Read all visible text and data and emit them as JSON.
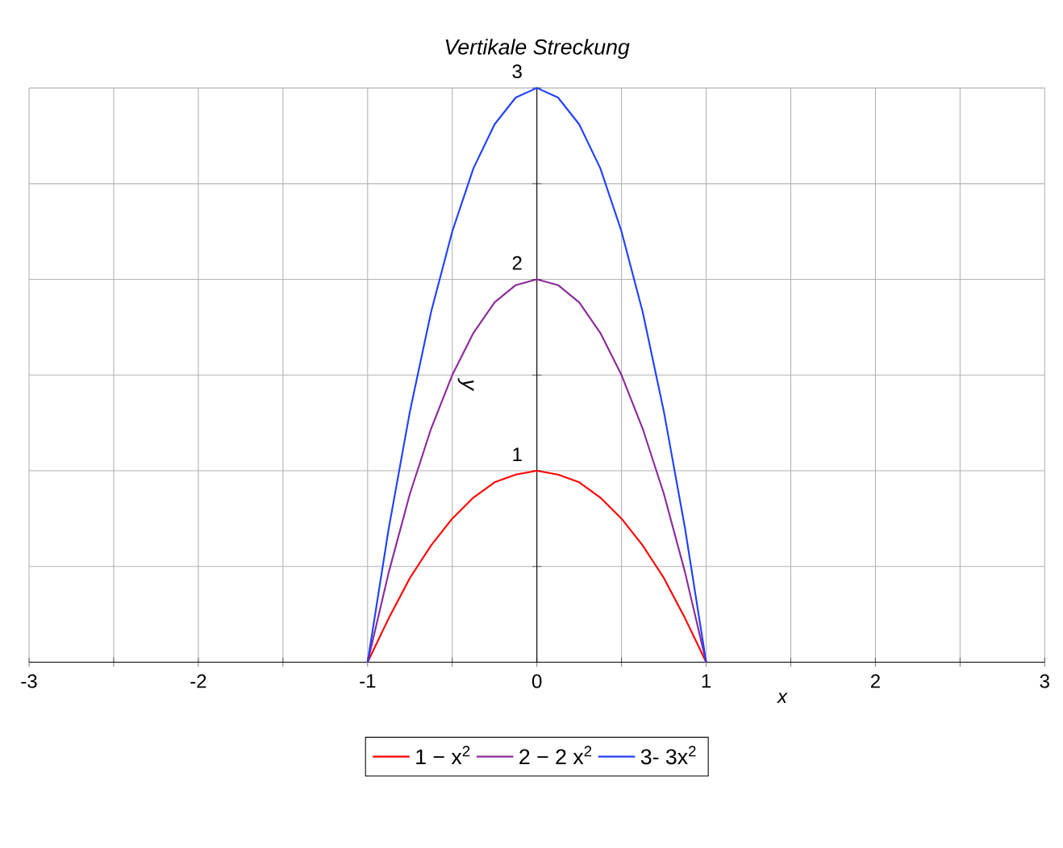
{
  "chart_data": {
    "type": "line",
    "title": "Vertikale Streckung",
    "xlabel": "x",
    "ylabel": "y",
    "x": [
      -1,
      -0.875,
      -0.75,
      -0.625,
      -0.5,
      -0.375,
      -0.25,
      -0.125,
      0,
      0.125,
      0.25,
      0.375,
      0.5,
      0.625,
      0.75,
      0.875,
      1
    ],
    "series": [
      {
        "name": "1 − x$^{2}$",
        "color": "#ff0000",
        "values": [
          0,
          0.23,
          0.44,
          0.61,
          0.75,
          0.86,
          0.94,
          0.98,
          1,
          0.98,
          0.94,
          0.86,
          0.75,
          0.61,
          0.44,
          0.23,
          0
        ]
      },
      {
        "name": "2 − 2 x$^{2}$",
        "color": "#8b2a9a",
        "values": [
          0,
          0.47,
          0.88,
          1.22,
          1.5,
          1.72,
          1.88,
          1.97,
          2,
          1.97,
          1.88,
          1.72,
          1.5,
          1.22,
          0.88,
          0.47,
          0
        ]
      },
      {
        "name": "3- 3x$^{2}$",
        "color": "#2040ff",
        "values": [
          0,
          0.7,
          1.31,
          1.83,
          2.25,
          2.58,
          2.81,
          2.95,
          3,
          2.95,
          2.81,
          2.58,
          2.25,
          1.83,
          1.31,
          0.7,
          0
        ]
      }
    ],
    "xlim": [
      -3,
      3
    ],
    "ylim": [
      0,
      3
    ],
    "xticks": [
      -3,
      {
        "value": -2.5,
        "label": null
      },
      -2,
      {
        "value": -1.5,
        "label": null
      },
      -1,
      {
        "value": -0.5,
        "label": null
      },
      0,
      {
        "value": 0.5,
        "label": null
      },
      1,
      {
        "value": 1.5,
        "label": null
      },
      2,
      {
        "value": 2.5,
        "label": null
      },
      3
    ],
    "yticks": [
      {
        "value": 0.5,
        "label": null
      },
      1,
      {
        "value": 1.5,
        "label": null
      },
      2,
      {
        "value": 2.5,
        "label": null
      },
      3
    ],
    "grid": true,
    "legend": "bottom",
    "marker": "none",
    "line_style": "solid"
  }
}
